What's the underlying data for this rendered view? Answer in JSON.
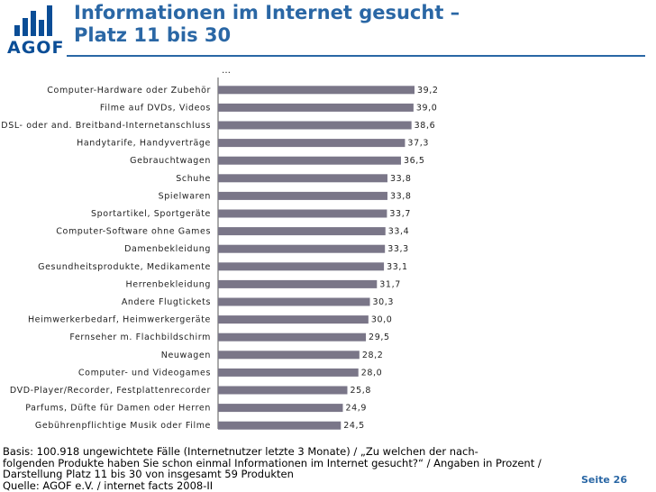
{
  "header": {
    "logo_text": "AGOF",
    "title_line1": "Informationen im Internet gesucht –",
    "title_line2": "Platz 11 bis 30",
    "ellipsis": "…"
  },
  "chart_data": {
    "type": "bar",
    "orientation": "horizontal",
    "title": "Informationen im Internet gesucht – Platz 11 bis 30",
    "xlabel": "",
    "ylabel": "",
    "xlim": [
      0,
      50
    ],
    "grid": false,
    "categories": [
      "Computer-Hardware oder Zubehör",
      "Filme auf DVDs, Videos",
      "DSL- oder and. Breitband-Internetanschluss",
      "Handytarife, Handyverträge",
      "Gebrauchtwagen",
      "Schuhe",
      "Spielwaren",
      "Sportartikel, Sportgeräte",
      "Computer-Software ohne Games",
      "Damenbekleidung",
      "Gesundheitsprodukte, Medikamente",
      "Herrenbekleidung",
      "Andere Flugtickets",
      "Heimwerkerbedarf, Heimwerkergeräte",
      "Fernseher m. Flachbildschirm",
      "Neuwagen",
      "Computer- und Videogames",
      "DVD-Player/Recorder, Festplattenrecorder",
      "Parfums, Düfte für Damen oder Herren",
      "Gebührenpflichtige Musik oder Filme"
    ],
    "values": [
      39.2,
      39.0,
      38.6,
      37.3,
      36.5,
      33.8,
      33.8,
      33.7,
      33.4,
      33.3,
      33.1,
      31.7,
      30.3,
      30.0,
      29.5,
      28.2,
      28.0,
      25.8,
      24.9,
      24.5
    ],
    "value_labels": [
      "39,2",
      "39,0",
      "38,6",
      "37,3",
      "36,5",
      "33,8",
      "33,8",
      "33,7",
      "33,4",
      "33,3",
      "33,1",
      "31,7",
      "30,3",
      "30,0",
      "29,5",
      "28,2",
      "28,0",
      "25,8",
      "24,9",
      "24,5"
    ],
    "bar_color": "#7a7688"
  },
  "footer": {
    "line1": "Basis: 100.918 ungewichtete Fälle (Internetnutzer letzte 3 Monate) / „Zu welchen der nach-",
    "line2": "folgenden Produkte haben Sie schon einmal Informationen im Internet gesucht?“ / Angaben in Prozent /",
    "line3": "Darstellung Platz 11 bis 30 von insgesamt 59 Produkten",
    "line4": "Quelle: AGOF e.V. / internet facts 2008-II"
  },
  "page_label": "Seite 26",
  "colors": {
    "accent": "#2a67a5",
    "logo": "#0a4d96",
    "bar": "#7a7688"
  }
}
